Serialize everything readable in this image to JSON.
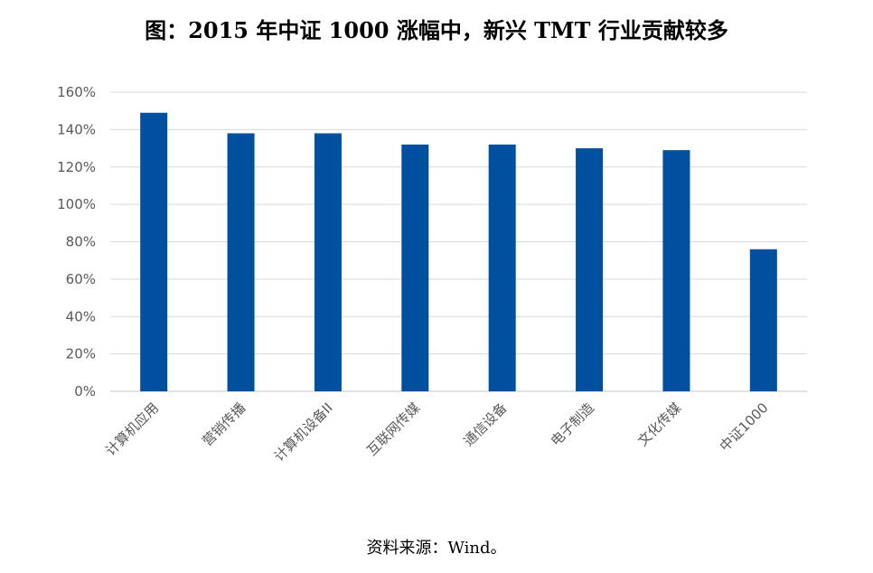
{
  "title": "图：2015 年中证 1000 涨幅中，新兴 TMT 行业贡献较多",
  "source": "资料来源：Wind。",
  "colors": {
    "bar": "#0050A0",
    "grid": "#D9D9D9",
    "axis_text": "#595959"
  },
  "chart_data": {
    "type": "bar",
    "categories": [
      "计算机应用",
      "营销传播",
      "计算机设备II",
      "互联网传媒",
      "通信设备",
      "电子制造",
      "文化传媒",
      "中证1000"
    ],
    "values": [
      149,
      138,
      138,
      132,
      132,
      130,
      129,
      76
    ],
    "unit": "%",
    "yticks": [
      "0%",
      "20%",
      "40%",
      "60%",
      "80%",
      "100%",
      "120%",
      "140%",
      "160%"
    ],
    "ylim": [
      0,
      160
    ],
    "grid": true,
    "legend": false
  }
}
